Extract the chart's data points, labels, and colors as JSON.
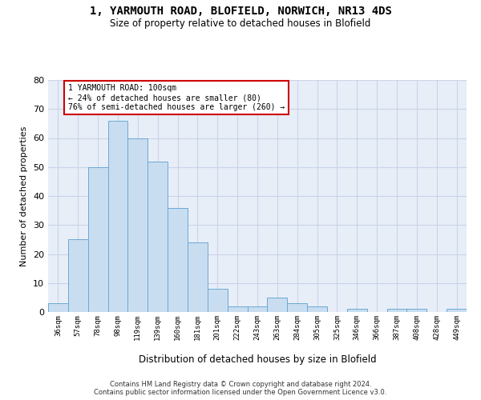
{
  "title1": "1, YARMOUTH ROAD, BLOFIELD, NORWICH, NR13 4DS",
  "title2": "Size of property relative to detached houses in Blofield",
  "xlabel": "Distribution of detached houses by size in Blofield",
  "ylabel": "Number of detached properties",
  "bar_labels": [
    "36sqm",
    "57sqm",
    "78sqm",
    "98sqm",
    "119sqm",
    "139sqm",
    "160sqm",
    "181sqm",
    "201sqm",
    "222sqm",
    "243sqm",
    "263sqm",
    "284sqm",
    "305sqm",
    "325sqm",
    "346sqm",
    "366sqm",
    "387sqm",
    "408sqm",
    "428sqm",
    "449sqm"
  ],
  "bar_values": [
    3,
    25,
    50,
    66,
    60,
    52,
    36,
    24,
    8,
    2,
    2,
    5,
    3,
    2,
    0,
    1,
    0,
    1,
    1,
    0,
    1
  ],
  "bar_color": "#c9ddf0",
  "bar_edge_color": "#6aaad4",
  "annotation_line1": "1 YARMOUTH ROAD: 100sqm",
  "annotation_line2": "← 24% of detached houses are smaller (80)",
  "annotation_line3": "76% of semi-detached houses are larger (260) →",
  "annotation_box_color": "white",
  "annotation_box_edge_color": "#cc0000",
  "ylim": [
    0,
    80
  ],
  "yticks": [
    0,
    10,
    20,
    30,
    40,
    50,
    60,
    70,
    80
  ],
  "grid_color": "#c8d4e8",
  "background_color": "#e8eef8",
  "footer_text": "Contains HM Land Registry data © Crown copyright and database right 2024.\nContains public sector information licensed under the Open Government Licence v3.0."
}
